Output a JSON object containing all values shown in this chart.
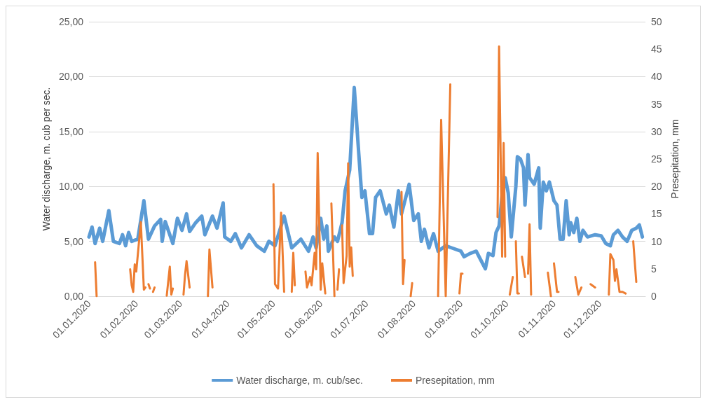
{
  "chart_data": {
    "type": "line",
    "ylabel": "Water discharge, m. cub per sec.",
    "y2label": "Presepitation, mm",
    "xlim": [
      "2020-01-01",
      "2020-12-31"
    ],
    "xticks": [
      {
        "value": "2020-01-01",
        "label": "01.01.2020"
      },
      {
        "value": "2020-02-01",
        "label": "01.02.2020"
      },
      {
        "value": "2020-03-01",
        "label": "01.03.2020"
      },
      {
        "value": "2020-04-01",
        "label": "01.04.2020"
      },
      {
        "value": "2020-05-01",
        "label": "01.05.2020"
      },
      {
        "value": "2020-06-01",
        "label": "01.06.2020"
      },
      {
        "value": "2020-07-01",
        "label": "01.07.2020"
      },
      {
        "value": "2020-08-01",
        "label": "01.08.2020"
      },
      {
        "value": "2020-09-01",
        "label": "01.09.2020"
      },
      {
        "value": "2020-10-01",
        "label": "01.10.2020"
      },
      {
        "value": "2020-11-01",
        "label": "01.11.2020"
      },
      {
        "value": "2020-12-01",
        "label": "01.12.2020"
      }
    ],
    "ylim": [
      0,
      25
    ],
    "yticks": [
      {
        "value": 0,
        "label": "0,00"
      },
      {
        "value": 5,
        "label": "5,00"
      },
      {
        "value": 10,
        "label": "10,00"
      },
      {
        "value": 15,
        "label": "15,00"
      },
      {
        "value": 20,
        "label": "20,00"
      },
      {
        "value": 25,
        "label": "25,00"
      }
    ],
    "y2lim": [
      0,
      50
    ],
    "y2ticks": [
      0,
      5,
      10,
      15,
      20,
      25,
      30,
      35,
      40,
      45,
      50
    ],
    "grid": "y",
    "legend": "bottom",
    "marker": "none",
    "line_style": "solid",
    "series": [
      {
        "name": "Water discharge, m. cub/sec.",
        "color": "#5b9bd5",
        "x": [
          "2020-01-01",
          "2020-01-03",
          "2020-01-05",
          "2020-01-08",
          "2020-01-10",
          "2020-01-14",
          "2020-01-17",
          "2020-01-21",
          "2020-01-23",
          "2020-01-25",
          "2020-01-27",
          "2020-01-29",
          "2020-02-02",
          "2020-02-06",
          "2020-02-09",
          "2020-02-13",
          "2020-02-17",
          "2020-02-18",
          "2020-02-20",
          "2020-02-25",
          "2020-02-28",
          "2020-03-02",
          "2020-03-05",
          "2020-03-07",
          "2020-03-11",
          "2020-03-15",
          "2020-03-17",
          "2020-03-22",
          "2020-03-25",
          "2020-03-29",
          "2020-03-30",
          "2020-04-03",
          "2020-04-06",
          "2020-04-10",
          "2020-04-15",
          "2020-04-20",
          "2020-04-25",
          "2020-04-28",
          "2020-05-02",
          "2020-05-08",
          "2020-05-13",
          "2020-05-19",
          "2020-05-24",
          "2020-05-27",
          "2020-05-29",
          "2020-06-01",
          "2020-06-03",
          "2020-06-05",
          "2020-06-06",
          "2020-06-10",
          "2020-06-12",
          "2020-06-15",
          "2020-06-17",
          "2020-06-20",
          "2020-06-23",
          "2020-06-26",
          "2020-06-28",
          "2020-06-30",
          "2020-07-03",
          "2020-07-05",
          "2020-07-07",
          "2020-07-10",
          "2020-07-14",
          "2020-07-16",
          "2020-07-19",
          "2020-07-22",
          "2020-07-24",
          "2020-07-29",
          "2020-08-01",
          "2020-08-04",
          "2020-08-06",
          "2020-08-08",
          "2020-08-11",
          "2020-08-14",
          "2020-08-17",
          "2020-08-22",
          "2020-08-26",
          "2020-09-01",
          "2020-09-03",
          "2020-09-07",
          "2020-09-11",
          "2020-09-14",
          "2020-09-17",
          "2020-09-19",
          "2020-09-22",
          "2020-09-24",
          "2020-09-26",
          "2020-09-28",
          "2020-09-30",
          "2020-10-02",
          "2020-10-04",
          "2020-10-07",
          "2020-10-08",
          "2020-10-10",
          "2020-10-12",
          "2020-10-13",
          "2020-10-15",
          "2020-10-16",
          "2020-10-19",
          "2020-10-22",
          "2020-10-23",
          "2020-10-25",
          "2020-10-27",
          "2020-10-29",
          "2020-11-01",
          "2020-11-03",
          "2020-11-05",
          "2020-11-07",
          "2020-11-09",
          "2020-11-11",
          "2020-11-12",
          "2020-11-14",
          "2020-11-16",
          "2020-11-18",
          "2020-11-20",
          "2020-11-23",
          "2020-11-28",
          "2020-12-02",
          "2020-12-05",
          "2020-12-08",
          "2020-12-10",
          "2020-12-13",
          "2020-12-16",
          "2020-12-19",
          "2020-12-22",
          "2020-12-25",
          "2020-12-27",
          "2020-12-29"
        ],
        "values": [
          5.4,
          6.3,
          4.8,
          6.2,
          5.0,
          7.8,
          5.0,
          4.8,
          5.6,
          4.6,
          5.8,
          5.0,
          5.2,
          8.7,
          5.2,
          6.4,
          7.0,
          5.0,
          6.8,
          4.8,
          7.1,
          6.0,
          7.5,
          5.9,
          6.7,
          7.3,
          5.6,
          7.3,
          6.2,
          8.5,
          5.4,
          5.0,
          5.7,
          4.4,
          5.6,
          4.6,
          4.1,
          5.0,
          4.6,
          7.3,
          4.4,
          5.2,
          4.1,
          5.4,
          4.4,
          7.1,
          5.2,
          6.4,
          4.1,
          5.4,
          5.0,
          6.7,
          9.6,
          11.5,
          19.0,
          12.9,
          9.0,
          9.6,
          5.7,
          5.7,
          9.0,
          9.6,
          7.5,
          8.3,
          6.3,
          9.6,
          7.5,
          10.2,
          6.9,
          7.5,
          5.0,
          6.1,
          4.4,
          5.7,
          4.1,
          4.6,
          4.4,
          4.1,
          3.6,
          3.9,
          4.1,
          3.3,
          2.5,
          3.9,
          3.7,
          5.8,
          6.4,
          9.2,
          10.8,
          9.4,
          5.4,
          10.0,
          12.7,
          12.5,
          11.7,
          8.3,
          12.9,
          10.8,
          10.2,
          11.7,
          6.2,
          10.4,
          9.6,
          10.4,
          8.7,
          8.3,
          5.2,
          5.2,
          8.7,
          5.6,
          6.7,
          5.8,
          7.1,
          5.0,
          6.0,
          5.4,
          5.6,
          5.5,
          4.8,
          4.6,
          5.6,
          6.0,
          5.4,
          5.0,
          6.0,
          6.2,
          6.5,
          5.4
        ]
      },
      {
        "name": "Presepitation, mm",
        "color": "#ed7d31",
        "axis": "y2",
        "x": [
          "2020-01-05",
          "2020-01-06",
          "2020-01-15",
          "2020-01-28",
          "2020-01-29",
          "2020-01-30",
          "2020-01-31",
          "2020-02-01",
          "2020-02-04",
          "2020-02-06",
          "2020-02-07",
          "2020-02-08",
          "2020-02-09",
          "2020-02-10",
          "2020-02-11",
          "2020-02-12",
          "2020-02-13",
          "2020-02-16",
          "2020-02-21",
          "2020-02-23",
          "2020-02-24",
          "2020-02-25",
          "2020-02-28",
          "2020-03-03",
          "2020-03-04",
          "2020-03-05",
          "2020-03-07",
          "2020-03-12",
          "2020-03-19",
          "2020-03-20",
          "2020-03-22",
          "2020-04-10",
          "2020-05-01",
          "2020-05-02",
          "2020-05-04",
          "2020-05-06",
          "2020-05-08",
          "2020-05-10",
          "2020-05-13",
          "2020-05-14",
          "2020-05-15",
          "2020-05-18",
          "2020-05-22",
          "2020-05-23",
          "2020-05-25",
          "2020-05-26",
          "2020-05-28",
          "2020-05-29",
          "2020-05-30",
          "2020-06-01",
          "2020-06-02",
          "2020-06-04",
          "2020-06-06",
          "2020-06-08",
          "2020-06-10",
          "2020-06-11",
          "2020-06-12",
          "2020-06-13",
          "2020-06-14",
          "2020-06-15",
          "2020-06-16",
          "2020-06-18",
          "2020-06-19",
          "2020-06-20",
          "2020-06-21",
          "2020-06-22",
          "2020-07-10",
          "2020-07-24",
          "2020-07-25",
          "2020-07-26",
          "2020-07-28",
          "2020-07-30",
          "2020-07-31",
          "2020-08-10",
          "2020-08-17",
          "2020-08-19",
          "2020-08-22",
          "2020-08-25",
          "2020-08-28",
          "2020-08-31",
          "2020-09-01",
          "2020-09-02",
          "2020-09-10",
          "2020-09-25",
          "2020-09-26",
          "2020-09-28",
          "2020-09-29",
          "2020-09-30",
          "2020-10-01",
          "2020-10-03",
          "2020-10-05",
          "2020-10-06",
          "2020-10-07",
          "2020-10-08",
          "2020-10-09",
          "2020-10-10",
          "2020-10-11",
          "2020-10-13",
          "2020-10-14",
          "2020-10-15",
          "2020-10-16",
          "2020-10-17",
          "2020-10-22",
          "2020-10-28",
          "2020-10-30",
          "2020-10-31",
          "2020-11-01",
          "2020-11-03",
          "2020-11-04",
          "2020-11-10",
          "2020-11-15",
          "2020-11-17",
          "2020-11-19",
          "2020-11-22",
          "2020-11-25",
          "2020-11-28",
          "2020-12-01",
          "2020-12-07",
          "2020-12-08",
          "2020-12-10",
          "2020-12-11",
          "2020-12-12",
          "2020-12-14",
          "2020-12-16",
          "2020-12-18",
          "2020-12-20",
          "2020-12-23",
          "2020-12-25"
        ],
        "values": [
          6.2,
          0,
          null,
          4.9,
          2.0,
          0.8,
          5.8,
          4.5,
          13.5,
          1.2,
          1.6,
          null,
          2.2,
          1.4,
          null,
          0.8,
          1.6,
          null,
          0.1,
          5.4,
          0.3,
          1.4,
          null,
          0.3,
          3.9,
          6.4,
          1.6,
          null,
          0,
          8.5,
          1.6,
          null,
          20.4,
          2.2,
          1.4,
          15.2,
          0.8,
          null,
          0.8,
          7.9,
          2.0,
          null,
          4.5,
          1.6,
          3.5,
          2.0,
          7.9,
          4.9,
          26.1,
          1.2,
          6.0,
          0.5,
          null,
          16.9,
          0,
          null,
          1.2,
          4.9,
          null,
          12.9,
          2.4,
          7.4,
          24.2,
          5.4,
          8.9,
          3.7,
          null,
          19.0,
          2.2,
          6.6,
          null,
          0,
          2.4,
          null,
          0,
          32.1,
          0,
          38.6,
          null,
          0.5,
          4.1,
          4.1,
          null,
          14.4,
          45.5,
          7.2,
          27.9,
          7.2,
          null,
          0.3,
          3.5,
          null,
          10.0,
          0.5,
          0.5,
          null,
          7.2,
          3.5,
          null,
          4.1,
          13.1,
          0.3,
          null,
          4.3,
          0,
          null,
          6.0,
          0.8,
          0.8,
          null,
          3.5,
          0.3,
          1.6,
          null,
          2.2,
          1.6,
          null,
          0.3,
          7.7,
          6.6,
          2.8,
          4.9,
          0.8,
          0.8,
          0.5,
          null,
          10.0,
          2.6
        ]
      }
    ]
  }
}
